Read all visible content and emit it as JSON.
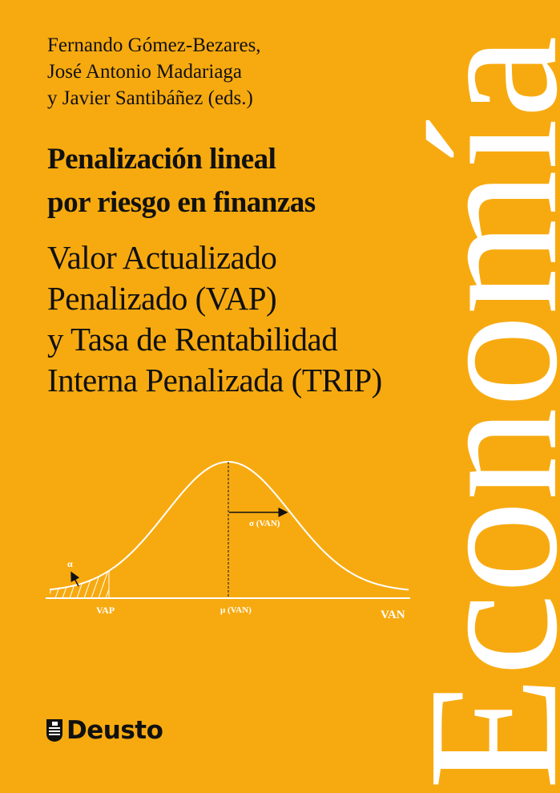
{
  "cover": {
    "authors": [
      "Fernando Gómez-Bezares,",
      "José Antonio Madariaga",
      "y Javier Santibáñez (eds.)"
    ],
    "title": [
      "Penalización lineal",
      "por riesgo en finanzas"
    ],
    "subtitle": [
      "Valor Actualizado",
      "Penalizado (VAP)",
      "y Tasa de Rentabilidad",
      "Interna Penalizada (TRIP)"
    ],
    "series_label": "Economía",
    "publisher": "Deusto",
    "background_color": "#F7AA10"
  },
  "diagram": {
    "type": "normal-distribution",
    "labels": {
      "alpha": "α",
      "sigma": "σ (VAN)",
      "vap": "VAP",
      "mean": "μ (VAN)",
      "axis": "VAN"
    }
  }
}
